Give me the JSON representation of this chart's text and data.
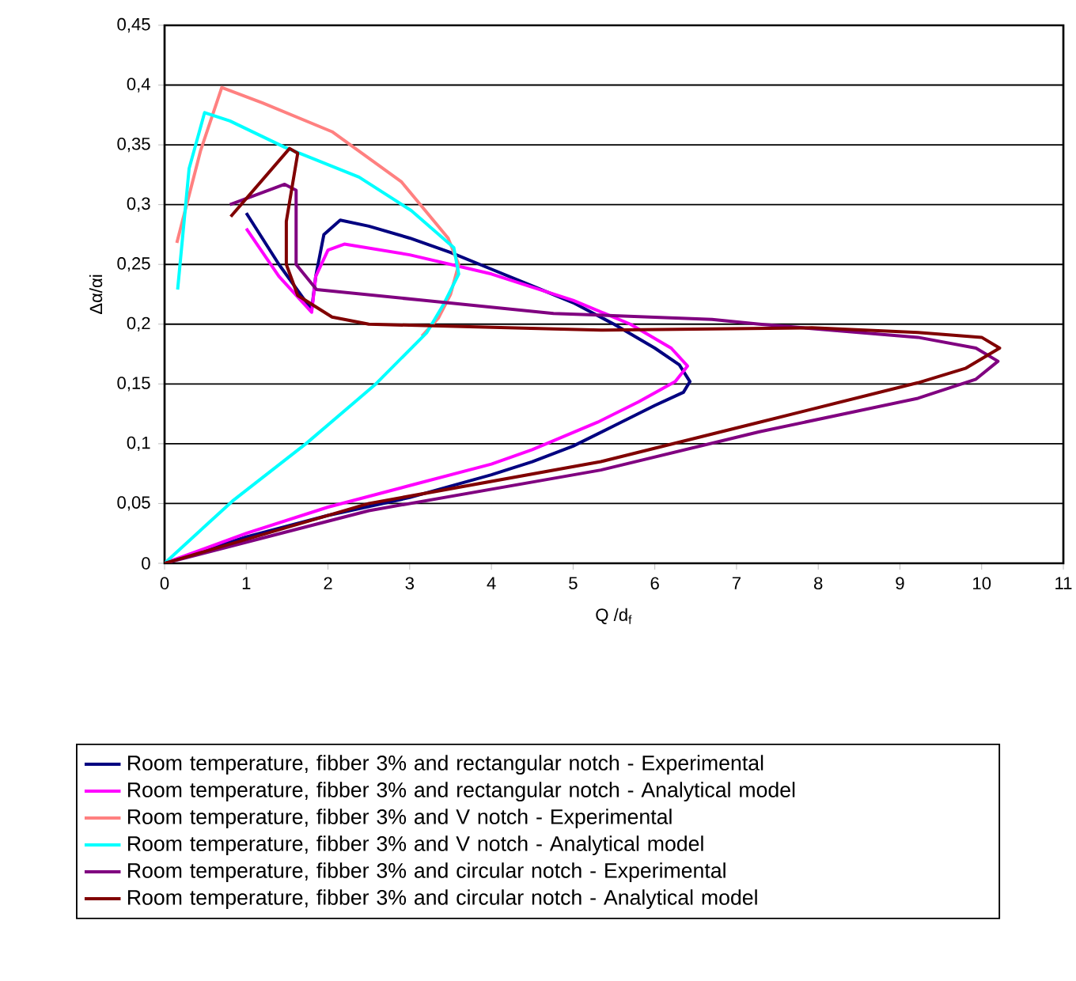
{
  "chart_data": {
    "type": "line",
    "xlabel": "Q /d$_{f}$",
    "ylabel": "Δα/αi",
    "xlim": [
      0,
      11
    ],
    "xticks": [
      0,
      1,
      2,
      3,
      4,
      5,
      6,
      7,
      8,
      9,
      10,
      11
    ],
    "ylim": [
      0,
      0.45
    ],
    "yticks": [
      0,
      {
        "value": 0.05,
        "label": "0,05"
      },
      {
        "value": 0.1,
        "label": "0,1"
      },
      {
        "value": 0.15,
        "label": "0,15"
      },
      {
        "value": 0.2,
        "label": "0,2"
      },
      {
        "value": 0.25,
        "label": "0,25"
      },
      {
        "value": 0.3,
        "label": "0,3"
      },
      {
        "value": 0.35,
        "label": "0,35"
      },
      {
        "value": 0.4,
        "label": "0,4"
      },
      {
        "value": 0.45,
        "label": "0,45"
      }
    ],
    "grid": "y",
    "legend": "bottom",
    "marker": "none",
    "line_style": "solid",
    "series": [
      {
        "name": "Room temperature, fibber 3% and rectangular notch - Experimental",
        "color": "#000080",
        "x": [
          1.0,
          1.4,
          1.8,
          1.85,
          1.95,
          2.15,
          2.5,
          3,
          3.5,
          4,
          4.5,
          5,
          5.5,
          6,
          6.3,
          6.43,
          6.35,
          6,
          5.5,
          5,
          4.5,
          4,
          3,
          2,
          1,
          0
        ],
        "values": [
          0.293,
          0.25,
          0.212,
          0.24,
          0.275,
          0.287,
          0.282,
          0.272,
          0.26,
          0.246,
          0.232,
          0.218,
          0.2,
          0.18,
          0.166,
          0.152,
          0.143,
          0.132,
          0.115,
          0.098,
          0.085,
          0.074,
          0.055,
          0.04,
          0.022,
          0
        ]
      },
      {
        "name": "Room temperature, fibber 3% and rectangular notch - Analytical model",
        "color": "#ff00ff",
        "x": [
          1.0,
          1.4,
          1.8,
          1.85,
          2.0,
          2.2,
          3,
          4,
          5,
          5.7,
          6.2,
          6.4,
          6.25,
          5.8,
          5.3,
          4.5,
          4,
          3,
          2,
          1,
          0
        ],
        "values": [
          0.28,
          0.24,
          0.21,
          0.24,
          0.262,
          0.267,
          0.258,
          0.242,
          0.22,
          0.2,
          0.18,
          0.165,
          0.152,
          0.135,
          0.118,
          0.095,
          0.083,
          0.065,
          0.047,
          0.025,
          0
        ]
      },
      {
        "name": "Room temperature, fibber 3% and V notch - Experimental",
        "color": "#ff8080",
        "x": [
          0.15,
          0.44,
          0.7,
          1.2,
          2.05,
          2.9,
          3.47,
          3.6,
          3.5,
          3.35,
          3.15
        ],
        "values": [
          0.268,
          0.345,
          0.398,
          0.385,
          0.361,
          0.319,
          0.272,
          0.25,
          0.225,
          0.205,
          0.19
        ]
      },
      {
        "name": "Room temperature, fibber 3% and V notch - Analytical model",
        "color": "#00ffff",
        "x": [
          0.16,
          0.3,
          0.49,
          0.8,
          1.47,
          2.38,
          3.02,
          3.54,
          3.6,
          3.41,
          3.21,
          2.57,
          1.73,
          0.83,
          0
        ],
        "values": [
          0.229,
          0.33,
          0.377,
          0.37,
          0.348,
          0.323,
          0.295,
          0.264,
          0.242,
          0.216,
          0.193,
          0.149,
          0.1,
          0.052,
          0
        ]
      },
      {
        "name": "Room temperature, fibber 3% and circular notch - Experimental",
        "color": "#800080",
        "x": [
          0.8,
          1.47,
          1.61,
          1.61,
          1.86,
          3.16,
          4.76,
          6.7,
          7.28,
          9.22,
          9.93,
          10.2,
          9.93,
          9.22,
          7.28,
          5.34,
          2.5,
          0
        ],
        "values": [
          0.3,
          0.317,
          0.312,
          0.25,
          0.229,
          0.22,
          0.209,
          0.204,
          0.2,
          0.189,
          0.18,
          0.169,
          0.154,
          0.138,
          0.11,
          0.078,
          0.044,
          0
        ]
      },
      {
        "name": "Room temperature, fibber 3% and circular notch - Analytical model",
        "color": "#800000",
        "x": [
          0.81,
          1.53,
          1.63,
          1.49,
          1.49,
          1.63,
          2.05,
          2.5,
          4.76,
          5.34,
          7.92,
          9.22,
          10.0,
          10.22,
          9.8,
          9.22,
          7.28,
          5.34,
          2.5,
          0
        ],
        "values": [
          0.29,
          0.347,
          0.343,
          0.286,
          0.25,
          0.224,
          0.206,
          0.2,
          0.196,
          0.195,
          0.197,
          0.193,
          0.189,
          0.18,
          0.163,
          0.151,
          0.118,
          0.085,
          0.05,
          0
        ]
      }
    ]
  }
}
